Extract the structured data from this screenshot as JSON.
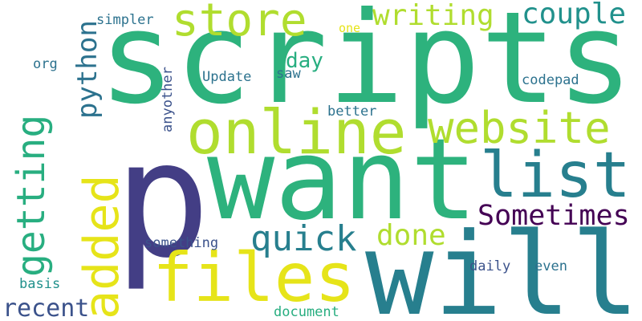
{
  "words": [
    {
      "text": "scripts",
      "color": "#2db27d",
      "orientation": "horizontal"
    },
    {
      "text": "p",
      "color": "#433e85",
      "orientation": "horizontal"
    },
    {
      "text": "want",
      "color": "#2db27d",
      "orientation": "horizontal"
    },
    {
      "text": "will",
      "color": "#277f8e",
      "orientation": "horizontal"
    },
    {
      "text": "online",
      "color": "#b0dd2f",
      "orientation": "horizontal"
    },
    {
      "text": "files",
      "color": "#e6e419",
      "orientation": "horizontal"
    },
    {
      "text": "getting",
      "color": "#28ae80",
      "orientation": "vertical"
    },
    {
      "text": "added",
      "color": "#e6e419",
      "orientation": "vertical"
    },
    {
      "text": "website",
      "color": "#b0dd2f",
      "orientation": "horizontal"
    },
    {
      "text": "list",
      "color": "#277f8e",
      "orientation": "horizontal"
    },
    {
      "text": "store",
      "color": "#b0dd2f",
      "orientation": "horizontal"
    },
    {
      "text": "quick",
      "color": "#277f8e",
      "orientation": "horizontal"
    },
    {
      "text": "Sometimes",
      "color": "#440154",
      "orientation": "horizontal"
    },
    {
      "text": "python",
      "color": "#2c728e",
      "orientation": "vertical"
    },
    {
      "text": "writing",
      "color": "#b0dd2f",
      "orientation": "horizontal"
    },
    {
      "text": "couple",
      "color": "#21918c",
      "orientation": "horizontal"
    },
    {
      "text": "done",
      "color": "#b0dd2f",
      "orientation": "horizontal"
    },
    {
      "text": "day",
      "color": "#28ae80",
      "orientation": "horizontal"
    },
    {
      "text": "recent",
      "color": "#3b528b",
      "orientation": "horizontal"
    },
    {
      "text": "Update",
      "color": "#2c728e",
      "orientation": "horizontal"
    },
    {
      "text": "saw",
      "color": "#2c728e",
      "orientation": "horizontal"
    },
    {
      "text": "codepad",
      "color": "#2c728e",
      "orientation": "horizontal"
    },
    {
      "text": "anyother",
      "color": "#3b528b",
      "orientation": "vertical"
    },
    {
      "text": "better",
      "color": "#2c728e",
      "orientation": "horizontal"
    },
    {
      "text": "something",
      "color": "#3b528b",
      "orientation": "horizontal"
    },
    {
      "text": "daily",
      "color": "#3b528b",
      "orientation": "horizontal"
    },
    {
      "text": "even",
      "color": "#2c728e",
      "orientation": "horizontal"
    },
    {
      "text": "basis",
      "color": "#21918c",
      "orientation": "horizontal"
    },
    {
      "text": "document",
      "color": "#28ae80",
      "orientation": "horizontal"
    },
    {
      "text": "simpler",
      "color": "#2c728e",
      "orientation": "horizontal"
    },
    {
      "text": "one",
      "color": "#e6e419",
      "orientation": "horizontal"
    },
    {
      "text": "org",
      "color": "#2c728e",
      "orientation": "horizontal"
    }
  ]
}
